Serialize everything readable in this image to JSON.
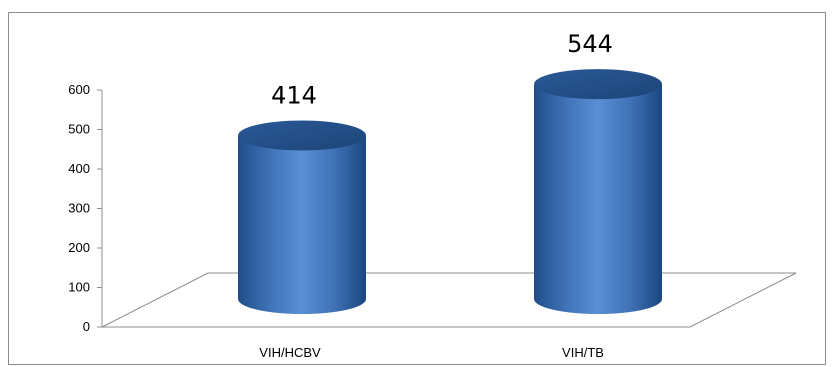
{
  "chart_data": {
    "type": "bar",
    "style": "3d-cylinder",
    "categories": [
      "VIH/HCBV",
      "VIH/TB"
    ],
    "values": [
      414,
      544
    ],
    "data_labels": [
      "414",
      "544"
    ],
    "ylim": [
      0,
      600
    ],
    "yticks": [
      "0",
      "100",
      "200",
      "300",
      "400",
      "500",
      "600"
    ],
    "title": "",
    "xlabel": "",
    "ylabel": "",
    "grid": false,
    "legend": "none",
    "bar_color": "#4a7ebb"
  }
}
